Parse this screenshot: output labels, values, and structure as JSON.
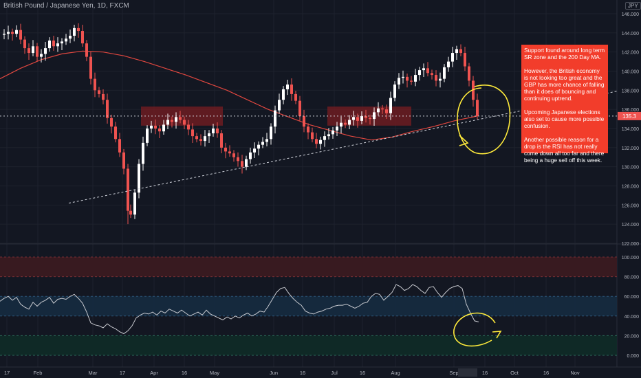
{
  "header": {
    "symbol": "British Pound / Japanese Yen, 1D, FXCM",
    "currency": "JPY"
  },
  "annotation": {
    "paragraphs": [
      "Support found around long term SR zone and the 200 Day MA.",
      "However, the British economy is not looking too great and the GBP has more chance of falling than it does of bouncing and continuing uptrend.",
      "Upcoming Japanese elections also set to cause more possible confusion.",
      "Another possible reason for a drop is the RSI has not really come down all too far and there being a huge sell off this week."
    ]
  },
  "colors": {
    "up": "#ffffff",
    "down": "#ef5350",
    "ma": "#e0473f",
    "rsi": "#c8cad0",
    "zone": "#7a1d22",
    "annotation_bg": "#f23d2b",
    "marker": "#ffeb3b"
  },
  "chart_data": [
    {
      "type": "candlestick",
      "yticks": [
        "122.000",
        "124.000",
        "126.000",
        "128.000",
        "130.000",
        "132.000",
        "134.000",
        "136.000",
        "138.000",
        "140.000",
        "142.000",
        "144.000",
        "146.000"
      ],
      "ylim": [
        122,
        146.5
      ],
      "xticks": [
        "17",
        "Feb",
        "Mar",
        "17",
        "Apr",
        "16",
        "May",
        "Jun",
        "16",
        "Jul",
        "16",
        "Aug",
        "Sep",
        "16",
        "Oct",
        "16",
        "Nov"
      ],
      "price_label": "135.3",
      "price_tag_color": "#ef5350",
      "series": [
        {
          "name": "GBPJPY",
          "close_path": [
            [
              0,
              143.8
            ],
            [
              6,
              143.9
            ],
            [
              12,
              144.1
            ],
            [
              18,
              143.9
            ],
            [
              24,
              144.3
            ],
            [
              30,
              143.3
            ],
            [
              36,
              142.4
            ],
            [
              42,
              141.9
            ],
            [
              48,
              142.6
            ],
            [
              54,
              141.5
            ],
            [
              60,
              141.8
            ],
            [
              66,
              142.4
            ],
            [
              72,
              143.2
            ],
            [
              78,
              142.6
            ],
            [
              84,
              142.9
            ],
            [
              90,
              143.1
            ],
            [
              96,
              143.4
            ],
            [
              102,
              143.7
            ],
            [
              108,
              144.5
            ],
            [
              114,
              144.2
            ],
            [
              120,
              142.9
            ],
            [
              126,
              141.5
            ],
            [
              132,
              139.2
            ],
            [
              138,
              138.0
            ],
            [
              144,
              137.6
            ],
            [
              150,
              137.0
            ],
            [
              156,
              135.1
            ],
            [
              162,
              134.2
            ],
            [
              168,
              132.9
            ],
            [
              174,
              131.5
            ],
            [
              180,
              129.8
            ],
            [
              186,
              125.4
            ],
            [
              190,
              125.0
            ],
            [
              196,
              127.3
            ],
            [
              202,
              130.3
            ],
            [
              208,
              132.5
            ],
            [
              214,
              134.0
            ],
            [
              220,
              134.3
            ],
            [
              226,
              134.0
            ],
            [
              232,
              133.7
            ],
            [
              238,
              134.4
            ],
            [
              244,
              134.9
            ],
            [
              250,
              134.7
            ],
            [
              256,
              135.2
            ],
            [
              262,
              134.9
            ],
            [
              268,
              134.4
            ],
            [
              274,
              133.9
            ],
            [
              280,
              133.2
            ],
            [
              286,
              132.9
            ],
            [
              292,
              132.7
            ],
            [
              298,
              133.2
            ],
            [
              304,
              133.5
            ],
            [
              310,
              134.0
            ],
            [
              316,
              133.5
            ],
            [
              322,
              132.0
            ],
            [
              328,
              131.6
            ],
            [
              334,
              131.4
            ],
            [
              340,
              131.0
            ],
            [
              346,
              130.6
            ],
            [
              352,
              130.0
            ],
            [
              358,
              130.8
            ],
            [
              364,
              131.5
            ],
            [
              370,
              131.9
            ],
            [
              376,
              132.3
            ],
            [
              382,
              132.6
            ],
            [
              388,
              132.9
            ],
            [
              394,
              134.2
            ],
            [
              400,
              135.9
            ],
            [
              406,
              137.0
            ],
            [
              412,
              138.1
            ],
            [
              418,
              138.6
            ],
            [
              424,
              137.6
            ],
            [
              430,
              136.9
            ],
            [
              436,
              135.3
            ],
            [
              442,
              134.2
            ],
            [
              448,
              133.6
            ],
            [
              454,
              132.9
            ],
            [
              460,
              132.4
            ],
            [
              466,
              132.8
            ],
            [
              472,
              133.2
            ],
            [
              478,
              133.4
            ],
            [
              484,
              133.8
            ],
            [
              490,
              134.2
            ],
            [
              496,
              134.6
            ],
            [
              502,
              134.4
            ],
            [
              508,
              134.9
            ],
            [
              514,
              135.2
            ],
            [
              520,
              134.8
            ],
            [
              526,
              135.3
            ],
            [
              532,
              135.1
            ],
            [
              538,
              135.0
            ],
            [
              544,
              135.7
            ],
            [
              550,
              136.1
            ],
            [
              556,
              136.0
            ],
            [
              562,
              135.6
            ],
            [
              568,
              137.2
            ],
            [
              574,
              138.6
            ],
            [
              580,
              139.3
            ],
            [
              586,
              139.4
            ],
            [
              592,
              139.0
            ],
            [
              598,
              138.9
            ],
            [
              604,
              139.6
            ],
            [
              610,
              140.1
            ],
            [
              616,
              140.3
            ],
            [
              622,
              139.8
            ],
            [
              628,
              139.6
            ],
            [
              634,
              139.0
            ],
            [
              640,
              139.2
            ],
            [
              646,
              140.4
            ],
            [
              652,
              141.0
            ],
            [
              658,
              141.9
            ],
            [
              664,
              142.3
            ],
            [
              670,
              141.9
            ],
            [
              676,
              140.5
            ],
            [
              682,
              139.0
            ],
            [
              688,
              137.0
            ],
            [
              694,
              135.3
            ]
          ]
        },
        {
          "name": "MA",
          "path": [
            [
              0,
              139.2
            ],
            [
              30,
              140.3
            ],
            [
              60,
              141.2
            ],
            [
              90,
              141.8
            ],
            [
              120,
              142.1
            ],
            [
              150,
              142.0
            ],
            [
              180,
              141.6
            ],
            [
              210,
              141.0
            ],
            [
              240,
              140.3
            ],
            [
              270,
              139.6
            ],
            [
              300,
              138.8
            ],
            [
              330,
              138.0
            ],
            [
              360,
              137.0
            ],
            [
              390,
              136.0
            ],
            [
              420,
              135.2
            ],
            [
              450,
              134.4
            ],
            [
              480,
              133.8
            ],
            [
              510,
              133.2
            ],
            [
              540,
              132.8
            ],
            [
              570,
              133.1
            ],
            [
              600,
              133.7
            ],
            [
              630,
              134.2
            ],
            [
              660,
              134.8
            ],
            [
              694,
              135.3
            ]
          ]
        }
      ]
    },
    {
      "type": "line",
      "name": "RSI",
      "yticks": [
        "0.000",
        "20.000",
        "40.000",
        "60.000",
        "80.000",
        "100.000"
      ],
      "ylim": [
        -4,
        112
      ],
      "bands": [
        [
          80,
          100
        ],
        [
          40,
          60
        ],
        [
          0,
          20
        ]
      ],
      "values": [
        [
          0,
          55
        ],
        [
          6,
          58
        ],
        [
          12,
          60
        ],
        [
          18,
          56
        ],
        [
          24,
          59
        ],
        [
          30,
          52
        ],
        [
          36,
          49
        ],
        [
          42,
          47
        ],
        [
          48,
          54
        ],
        [
          54,
          50
        ],
        [
          60,
          54
        ],
        [
          66,
          56
        ],
        [
          72,
          59
        ],
        [
          78,
          53
        ],
        [
          84,
          57
        ],
        [
          90,
          58
        ],
        [
          96,
          57
        ],
        [
          102,
          60
        ],
        [
          108,
          62
        ],
        [
          114,
          58
        ],
        [
          120,
          53
        ],
        [
          126,
          44
        ],
        [
          132,
          33
        ],
        [
          138,
          31
        ],
        [
          144,
          30
        ],
        [
          150,
          28
        ],
        [
          156,
          32
        ],
        [
          162,
          29
        ],
        [
          168,
          27
        ],
        [
          174,
          24
        ],
        [
          180,
          22
        ],
        [
          186,
          25
        ],
        [
          192,
          30
        ],
        [
          198,
          38
        ],
        [
          204,
          41
        ],
        [
          210,
          43
        ],
        [
          216,
          42
        ],
        [
          222,
          44
        ],
        [
          228,
          41
        ],
        [
          234,
          45
        ],
        [
          240,
          43
        ],
        [
          246,
          47
        ],
        [
          252,
          45
        ],
        [
          258,
          43
        ],
        [
          264,
          46
        ],
        [
          270,
          43
        ],
        [
          276,
          40
        ],
        [
          282,
          42
        ],
        [
          288,
          44
        ],
        [
          294,
          41
        ],
        [
          300,
          46
        ],
        [
          306,
          42
        ],
        [
          312,
          40
        ],
        [
          318,
          38
        ],
        [
          324,
          36
        ],
        [
          330,
          39
        ],
        [
          336,
          37
        ],
        [
          342,
          40
        ],
        [
          348,
          38
        ],
        [
          354,
          41
        ],
        [
          360,
          43
        ],
        [
          366,
          40
        ],
        [
          372,
          42
        ],
        [
          378,
          45
        ],
        [
          384,
          44
        ],
        [
          390,
          50
        ],
        [
          396,
          57
        ],
        [
          402,
          64
        ],
        [
          408,
          68
        ],
        [
          414,
          69
        ],
        [
          420,
          63
        ],
        [
          426,
          58
        ],
        [
          432,
          54
        ],
        [
          438,
          51
        ],
        [
          444,
          45
        ],
        [
          450,
          43
        ],
        [
          456,
          42
        ],
        [
          462,
          44
        ],
        [
          468,
          45
        ],
        [
          474,
          47
        ],
        [
          480,
          48
        ],
        [
          486,
          50
        ],
        [
          492,
          51
        ],
        [
          498,
          51
        ],
        [
          504,
          52
        ],
        [
          510,
          50
        ],
        [
          516,
          48
        ],
        [
          522,
          50
        ],
        [
          528,
          53
        ],
        [
          534,
          54
        ],
        [
          540,
          60
        ],
        [
          546,
          63
        ],
        [
          552,
          62
        ],
        [
          558,
          56
        ],
        [
          564,
          60
        ],
        [
          570,
          64
        ],
        [
          576,
          72
        ],
        [
          582,
          70
        ],
        [
          588,
          66
        ],
        [
          594,
          68
        ],
        [
          600,
          72
        ],
        [
          606,
          70
        ],
        [
          612,
          66
        ],
        [
          618,
          63
        ],
        [
          624,
          69
        ],
        [
          630,
          70
        ],
        [
          636,
          64
        ],
        [
          642,
          59
        ],
        [
          648,
          64
        ],
        [
          654,
          68
        ],
        [
          660,
          70
        ],
        [
          666,
          71
        ],
        [
          672,
          68
        ],
        [
          678,
          52
        ],
        [
          684,
          43
        ],
        [
          690,
          35
        ],
        [
          696,
          34
        ]
      ]
    }
  ]
}
